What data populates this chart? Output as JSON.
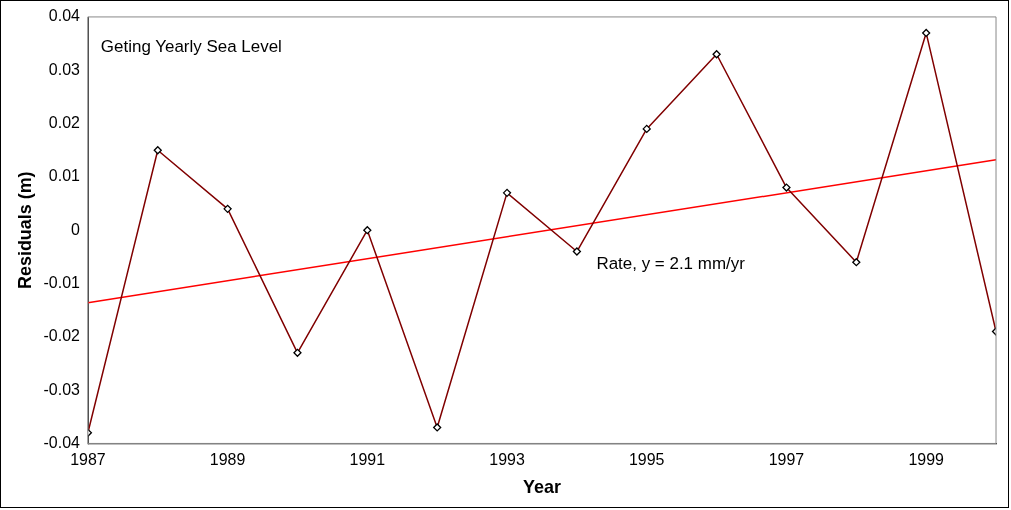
{
  "chart_data": {
    "type": "line",
    "title": "Geting Yearly Sea Level",
    "xlabel": "Year",
    "ylabel": "Residuals (m)",
    "x": [
      1987,
      1988,
      1989,
      1990,
      1991,
      1992,
      1993,
      1994,
      1995,
      1996,
      1997,
      1998,
      1999,
      2000
    ],
    "series": [
      {
        "color": "#800000",
        "marker": "diamond",
        "values": [
          -0.038,
          0.015,
          0.004,
          -0.023,
          0.0,
          -0.037,
          0.007,
          -0.004,
          0.019,
          0.033,
          0.008,
          -0.006,
          0.037,
          -0.019
        ]
      },
      {
        "type": "line",
        "color": "#ff0000",
        "marker": "none",
        "x": [
          1987,
          2000
        ],
        "values": [
          -0.0136,
          0.0132
        ]
      }
    ],
    "xlim": [
      1987,
      2000
    ],
    "xticks": [
      1987,
      1989,
      1991,
      1993,
      1995,
      1997,
      1999
    ],
    "ylim": [
      -0.04,
      0.04
    ],
    "yticks": [
      -0.04,
      -0.03,
      -0.02,
      -0.01,
      0,
      0.01,
      0.02,
      0.03,
      0.04
    ],
    "annotations": [
      "Rate, y = 2.1 mm/yr"
    ],
    "grid": false,
    "legend": false
  }
}
